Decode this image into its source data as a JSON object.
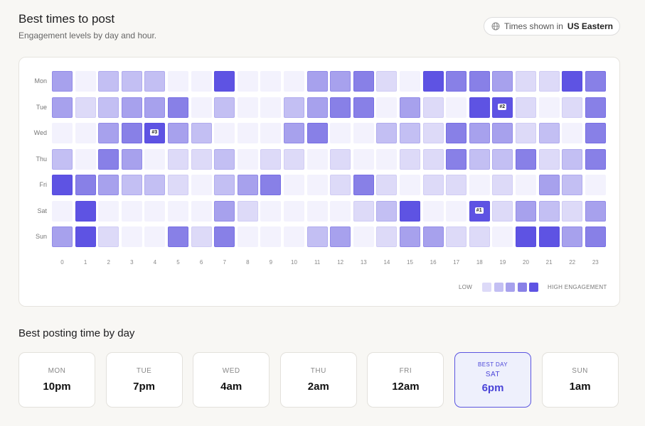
{
  "header": {
    "title": "Best times to post",
    "subtitle": "Engagement levels by day and hour.",
    "timezone_prefix": "Times shown in",
    "timezone": "US Eastern"
  },
  "heatmap": {
    "days": [
      "Mon",
      "Tue",
      "Wed",
      "Thu",
      "Fri",
      "Sat",
      "Sun"
    ],
    "hours": [
      0,
      1,
      2,
      3,
      4,
      5,
      6,
      7,
      8,
      9,
      10,
      11,
      12,
      13,
      14,
      15,
      16,
      17,
      18,
      19,
      20,
      21,
      22,
      23
    ],
    "colors": [
      "#f3f2fd",
      "#dddaf8",
      "#c3bff3",
      "#a7a1ed",
      "#8880e7",
      "#5e53e3"
    ],
    "levels": [
      [
        3,
        0,
        2,
        2,
        2,
        0,
        0,
        5,
        0,
        0,
        0,
        3,
        3,
        4,
        1,
        0,
        5,
        4,
        4,
        3,
        1,
        1,
        5,
        4
      ],
      [
        3,
        1,
        2,
        3,
        3,
        4,
        0,
        2,
        0,
        0,
        2,
        3,
        4,
        4,
        0,
        3,
        1,
        0,
        5,
        5,
        1,
        0,
        1,
        4
      ],
      [
        0,
        0,
        3,
        4,
        5,
        3,
        2,
        0,
        0,
        0,
        3,
        4,
        0,
        0,
        2,
        2,
        1,
        4,
        3,
        3,
        1,
        2,
        0,
        4
      ],
      [
        2,
        0,
        4,
        3,
        0,
        1,
        1,
        2,
        0,
        1,
        1,
        0,
        1,
        0,
        0,
        1,
        1,
        4,
        2,
        2,
        4,
        1,
        2,
        4
      ],
      [
        5,
        4,
        3,
        2,
        2,
        1,
        0,
        2,
        3,
        4,
        0,
        0,
        1,
        4,
        1,
        0,
        1,
        1,
        0,
        1,
        0,
        3,
        2,
        0
      ],
      [
        0,
        5,
        0,
        0,
        0,
        0,
        0,
        3,
        1,
        0,
        0,
        0,
        0,
        1,
        2,
        5,
        0,
        0,
        5,
        1,
        3,
        2,
        1,
        3
      ],
      [
        3,
        5,
        1,
        0,
        0,
        4,
        1,
        4,
        0,
        0,
        0,
        2,
        3,
        0,
        1,
        3,
        3,
        1,
        1,
        0,
        5,
        5,
        3,
        4
      ]
    ],
    "badges": [
      {
        "label": "#1",
        "day": "Sat",
        "hour": 18
      },
      {
        "label": "#2",
        "day": "Tue",
        "hour": 19
      },
      {
        "label": "#3",
        "day": "Wed",
        "hour": 4
      }
    ],
    "legend": {
      "low": "LOW",
      "high": "HIGH ENGAGEMENT",
      "levels": [
        1,
        2,
        3,
        4,
        5
      ]
    }
  },
  "best_section": {
    "title": "Best posting time by day",
    "cards": [
      {
        "day": "MON",
        "time": "10pm"
      },
      {
        "day": "TUE",
        "time": "7pm"
      },
      {
        "day": "WED",
        "time": "4am"
      },
      {
        "day": "THU",
        "time": "2am"
      },
      {
        "day": "FRI",
        "time": "12am"
      },
      {
        "tag": "BEST DAY",
        "day": "SAT",
        "time": "6pm",
        "highlight": true
      },
      {
        "day": "SUN",
        "time": "1am"
      }
    ]
  }
}
